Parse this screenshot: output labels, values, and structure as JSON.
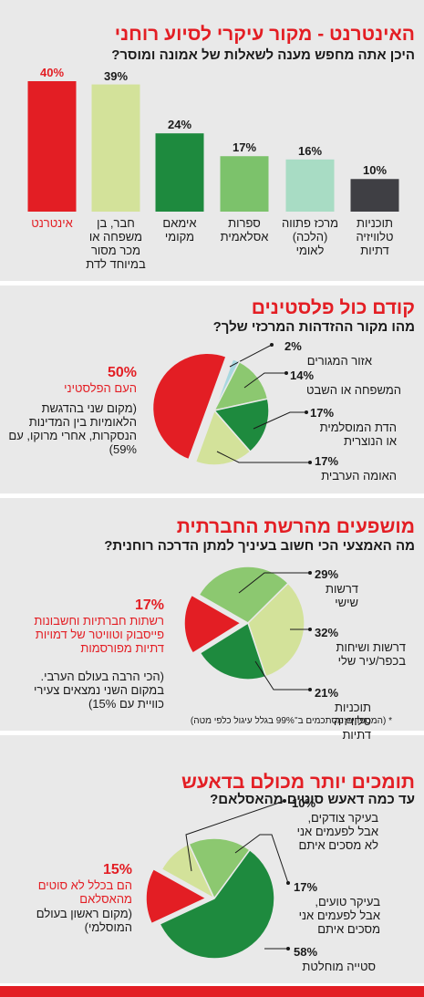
{
  "chart_data": [
    {
      "type": "bar",
      "title": "האינטרנט - מקור עיקרי לסיוע רוחני",
      "subtitle": "היכן אתה מחפש מענה לשאלות של אמונה ומוסר?",
      "categories": [
        "אינטרנט",
        "חבר, בן משפחה או מכר מסור במיוחד לדת",
        "אימאם מקומי",
        "ספרות אסלאמית",
        "מרכז פתווה (הלכה) לאומי",
        "תוכניות טלוויזיה דתיות"
      ],
      "values": [
        40,
        39,
        24,
        17,
        16,
        10
      ],
      "value_labels": [
        "40%",
        "39%",
        "24%",
        "17%",
        "16%",
        "10%"
      ],
      "colors": [
        "#e31e24",
        "#d3e29a",
        "#1e8a3e",
        "#7cc26b",
        "#a8dcc4",
        "#3f3f44"
      ]
    },
    {
      "type": "pie",
      "title": "קודם כול פלסטינים",
      "subtitle": "מהו מקור ההזדהות המרכזי שלך?",
      "categories": [
        "העם הפלסטיני",
        "אזור המגורים",
        "המשפחה או השבט",
        "הדת המוסלמית או הנוצרית",
        "האומה הערבית"
      ],
      "values": [
        50,
        2,
        14,
        17,
        17
      ],
      "value_labels": [
        "50%",
        "2%",
        "14%",
        "17%",
        "17%"
      ],
      "colors": [
        "#e31e24",
        "#a8d8e0",
        "#8cc870",
        "#1e8a3e",
        "#d3e29a"
      ],
      "note": "(מקום שני בהדגשת הלאומיות בין המדינות הנסקרות, אחרי מרוקו, עם 59%)"
    },
    {
      "type": "pie",
      "title": "מושפעים מהרשת החברתית",
      "subtitle": "מה האמצעי הכי חשוב בעיניך למתן הדרכה רוחנית?",
      "categories": [
        "רשתות חברתיות וחשבונות פייסבוק וטוויטר של דמויות דתיות מפורסמות",
        "דרשות שישי",
        "דרשות ושיחות בכפר/עיר שלי",
        "תוכניות טלוויזיה דתיות"
      ],
      "values": [
        17,
        29,
        32,
        21
      ],
      "value_labels": [
        "17%",
        "29%",
        "32%",
        "21%"
      ],
      "colors": [
        "#e31e24",
        "#8cc870",
        "#d3e29a",
        "#1e8a3e"
      ],
      "note": "(הכי הרבה בעולם הערבי. במקום השני נמצאים צעירי כוויית עם 15%)",
      "footnote": "* (המספרים מסתכמים ב־99% בגלל עיגול כלפי מטה)"
    },
    {
      "type": "pie",
      "title": "תומכים יותר מכולם בדאעש",
      "subtitle": "עד כמה דאעש סוטים מהאסלאם?",
      "categories": [
        "הם בכלל לא סוטים מהאסלאם",
        "בעיקר צודקים, אבל לפעמים אני לא מסכים איתם",
        "בעיקר טועים, אבל לפעמים אני מסכים איתם",
        "סטייה מוחלטת"
      ],
      "values": [
        15,
        10,
        17,
        58
      ],
      "value_labels": [
        "15%",
        "10%",
        "17%",
        "58%"
      ],
      "colors": [
        "#e31e24",
        "#d3e29a",
        "#8cc870",
        "#1e8a3e"
      ],
      "note": "(מקום ראשון בעולם המוסלמי)"
    }
  ]
}
